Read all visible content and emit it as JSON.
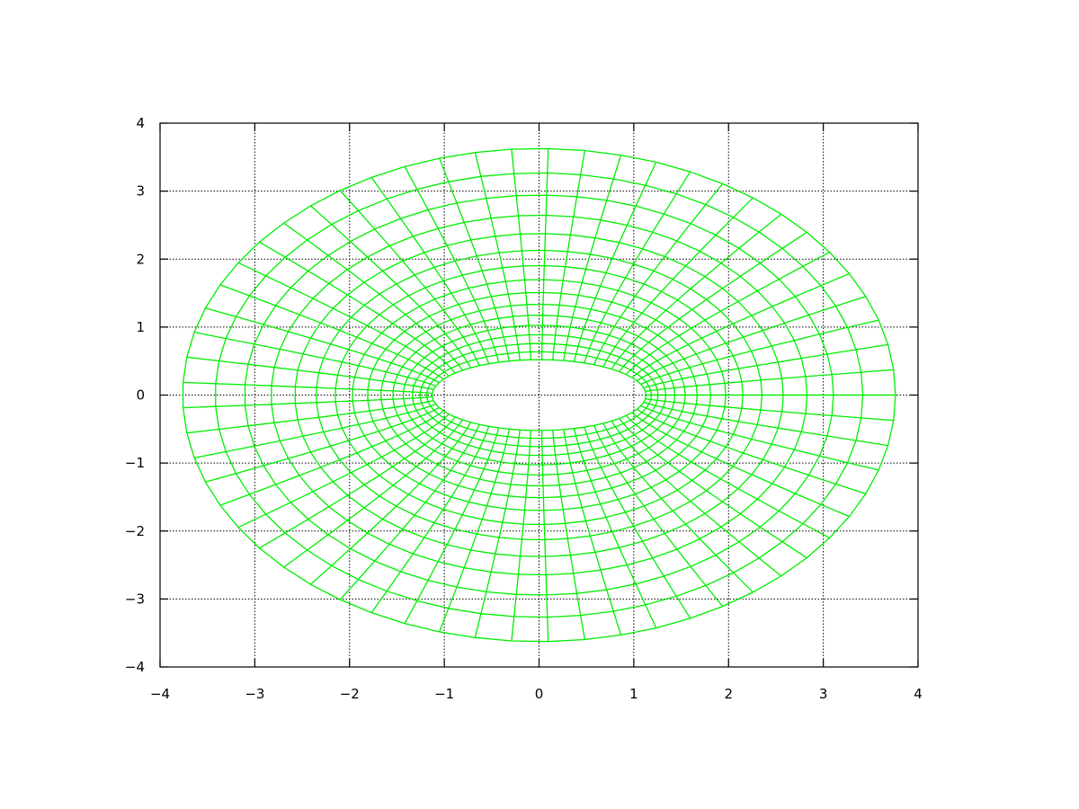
{
  "chart_data": {
    "type": "line",
    "title": "",
    "xlabel": "",
    "ylabel": "",
    "xlim": [
      -4,
      4
    ],
    "ylim": [
      -4,
      4
    ],
    "grid": true,
    "legend": "none",
    "series_color": "#00ee00",
    "grid_color": "#000000",
    "parametric_mesh": {
      "x_expr": "cosh(u)*cos(v)",
      "y_expr": "sinh(u)*sin(v)",
      "u_values": [
        0.5,
        0.6,
        0.7,
        0.8,
        0.9,
        1.0,
        1.1,
        1.2,
        1.3,
        1.4,
        1.5,
        1.6,
        1.7,
        1.8,
        1.9,
        2.0
      ],
      "v_range": [
        0,
        6.283185
      ],
      "v_intervals": 61
    },
    "xticks": [
      -4,
      -3,
      -2,
      -1,
      0,
      1,
      2,
      3,
      4
    ],
    "yticks": [
      -4,
      -3,
      -2,
      -1,
      0,
      1,
      2,
      3,
      4
    ],
    "xtick_labels": [
      "−4",
      "−3",
      "−2",
      "−1",
      "0",
      "1",
      "2",
      "3",
      "4"
    ],
    "ytick_labels": [
      "−4",
      "−3",
      "−2",
      "−1",
      "0",
      "1",
      "2",
      "3",
      "4"
    ]
  }
}
